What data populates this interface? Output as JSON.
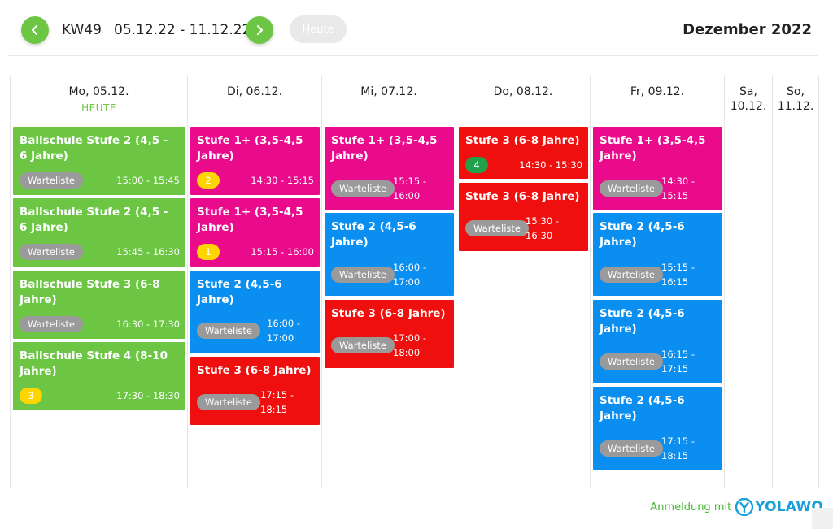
{
  "header": {
    "week": "KW49",
    "range": "05.12.22 - 11.12.22",
    "today_button": "Heute",
    "month": "Dezember 2022"
  },
  "days": [
    {
      "label": "Mo, 05.12.",
      "today_label": "HEUTE"
    },
    {
      "label": "Di, 06.12."
    },
    {
      "label": "Mi, 07.12."
    },
    {
      "label": "Do, 08.12."
    },
    {
      "label": "Fr, 09.12."
    },
    {
      "label_1": "Sa,",
      "label_2": "10.12."
    },
    {
      "label_1": "So,",
      "label_2": "11.12."
    }
  ],
  "events": {
    "mo": [
      {
        "title": "Ballschule Stufe 2 (4,5 - 6 Jahre)",
        "badge": "Warteliste",
        "time": "15:00 - 15:45",
        "color": "#6cc644"
      },
      {
        "title": "Ballschule Stufe 2 (4,5 - 6 Jahre)",
        "badge": "Warteliste",
        "time": "15:45 - 16:30",
        "color": "#6cc644"
      },
      {
        "title": "Ballschule Stufe 3 (6-8 Jahre)",
        "badge": "Warteliste",
        "time": "16:30 - 17:30",
        "color": "#6cc644"
      },
      {
        "title": "Ballschule Stufe 4 (8-10 Jahre)",
        "badge": "3",
        "time": "17:30 - 18:30",
        "color": "#6cc644"
      }
    ],
    "di": [
      {
        "title": "Stufe 1+ (3,5-4,5 Jahre)",
        "badge": "2",
        "time": "14:30 - 15:15",
        "color": "#ea0a8c"
      },
      {
        "title": "Stufe 1+ (3,5-4,5 Jahre)",
        "badge": "1",
        "time": "15:15 - 16:00",
        "color": "#ea0a8c"
      },
      {
        "title": "Stufe 2 (4,5-6 Jahre)",
        "badge": "Warteliste",
        "time_1": "16:00 -",
        "time_2": "17:00",
        "color": "#0a8ef0"
      },
      {
        "title": "Stufe 3 (6-8 Jahre)",
        "badge": "Warteliste",
        "time_1": "17:15 -",
        "time_2": "18:15",
        "color": "#f00f0f"
      }
    ],
    "mi": [
      {
        "title": "Stufe 1+ (3,5-4,5 Jahre)",
        "badge": "Warteliste",
        "time_1": "15:15 -",
        "time_2": "16:00",
        "color": "#ea0a8c"
      },
      {
        "title": "Stufe 2 (4,5-6 Jahre)",
        "badge": "Warteliste",
        "time_1": "16:00 -",
        "time_2": "17:00",
        "color": "#0a8ef0"
      },
      {
        "title": "Stufe 3 (6-8 Jahre)",
        "badge": "Warteliste",
        "time_1": "17:00 -",
        "time_2": "18:00",
        "color": "#f00f0f"
      }
    ],
    "do": [
      {
        "title": "Stufe 3 (6-8 Jahre)",
        "badge": "4",
        "time": "14:30 - 15:30",
        "color": "#f00f0f"
      },
      {
        "title": "Stufe 3 (6-8 Jahre)",
        "badge": "Warteliste",
        "time_1": "15:30 -",
        "time_2": "16:30",
        "color": "#f00f0f"
      }
    ],
    "fr": [
      {
        "title": "Stufe 1+ (3,5-4,5 Jahre)",
        "badge": "Warteliste",
        "time_1": "14:30 -",
        "time_2": "15:15",
        "color": "#ea0a8c"
      },
      {
        "title": "Stufe 2 (4,5-6 Jahre)",
        "badge": "Warteliste",
        "time_1": "15:15 -",
        "time_2": "16:15",
        "color": "#0a8ef0"
      },
      {
        "title": "Stufe 2 (4,5-6 Jahre)",
        "badge": "Warteliste",
        "time_1": "16:15 -",
        "time_2": "17:15",
        "color": "#0a8ef0"
      },
      {
        "title": "Stufe 2 (4,5-6 Jahre)",
        "badge": "Warteliste",
        "time_1": "17:15 -",
        "time_2": "18:15",
        "color": "#0a8ef0"
      }
    ]
  },
  "badge_colors": {
    "yellow": "#ffd500",
    "green": "#1fa24a",
    "waitlist": "#9a9a9a"
  },
  "footer": {
    "text": "Anmeldung mit",
    "logo_text": "YOLAWO"
  },
  "icons": {
    "prev": "chevron-left-icon",
    "next": "chevron-right-icon",
    "logo": "yolawo-logo-icon"
  }
}
